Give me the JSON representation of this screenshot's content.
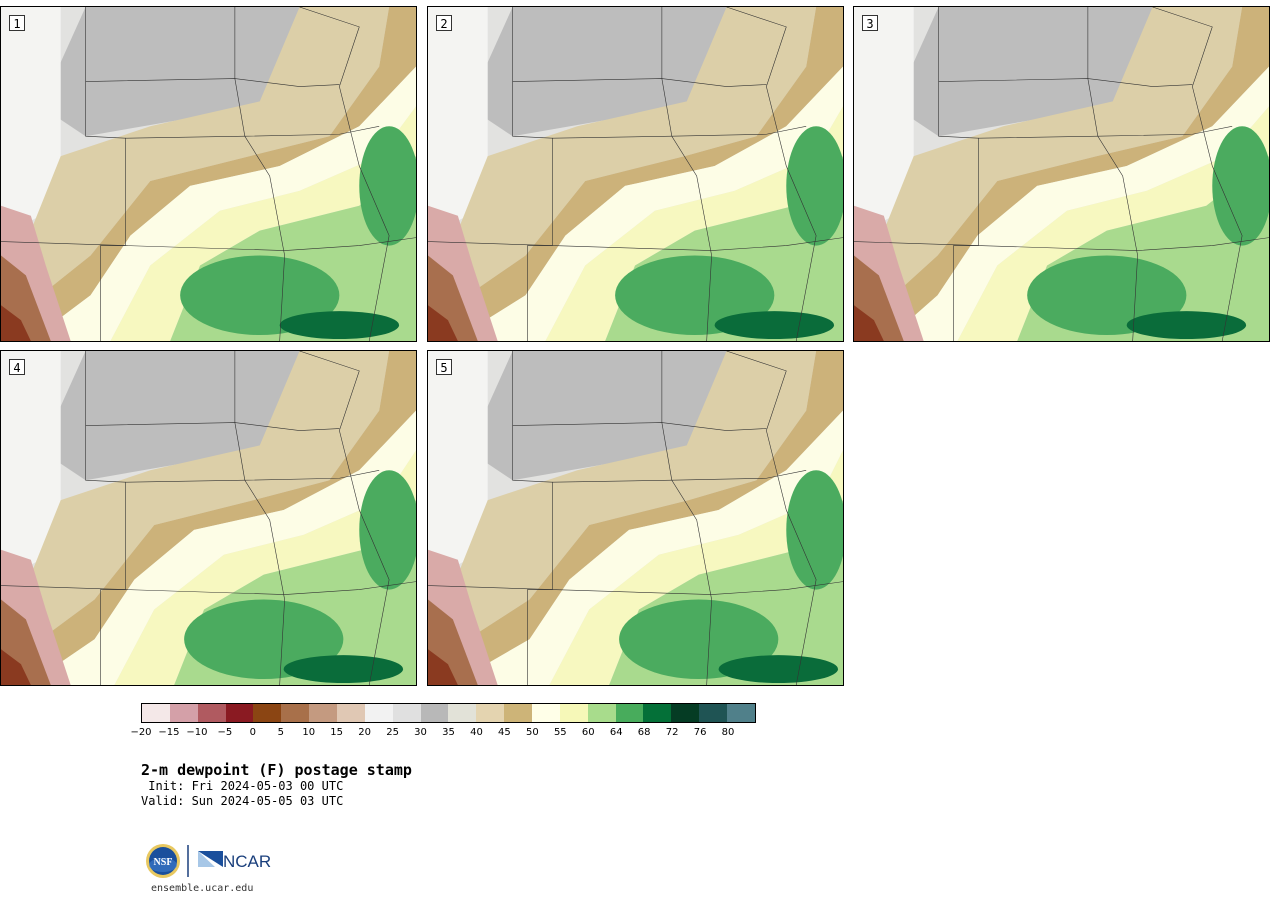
{
  "panels": [
    {
      "number": "1",
      "variant": 0
    },
    {
      "number": "2",
      "variant": 1
    },
    {
      "number": "3",
      "variant": 2
    },
    {
      "number": "4",
      "variant": 3
    },
    {
      "number": "5",
      "variant": 4
    }
  ],
  "colorbar": {
    "colors": [
      "#f4e8e8",
      "#d4a0a8",
      "#b05a60",
      "#8a1a22",
      "#8b4513",
      "#a8704a",
      "#c49a80",
      "#e0c8b4",
      "#f2f2f2",
      "#e0e0e0",
      "#b8b8b8",
      "#e2e2d8",
      "#e4d4b0",
      "#cdb478",
      "#ffffe8",
      "#f6f8b8",
      "#a8dc8c",
      "#48ac5c",
      "#047038",
      "#053c24",
      "#1f5454",
      "#50808a"
    ],
    "tick_labels": [
      "−20",
      "−15",
      "−10",
      "−5",
      "0",
      "5",
      "10",
      "15",
      "20",
      "25",
      "30",
      "35",
      "40",
      "45",
      "50",
      "55",
      "60",
      "64",
      "68",
      "72",
      "76",
      "80"
    ]
  },
  "title": "2-m dewpoint (F) postage stamp",
  "init": " Init: Fri 2024-05-03 00 UTC",
  "valid": "Valid: Sun 2024-05-05 03 UTC",
  "logo": {
    "nsf": "NSF",
    "ncar": "NCAR"
  },
  "site": "ensemble.ucar.edu"
}
